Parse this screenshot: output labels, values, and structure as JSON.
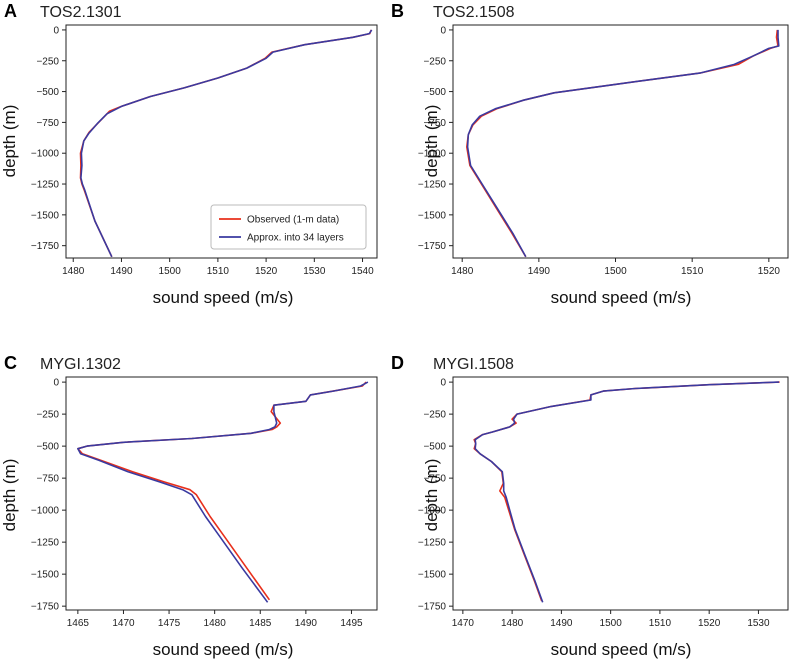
{
  "colors": {
    "observed": "#e8301c",
    "approx": "#3a3aa0"
  },
  "legend": {
    "observed": "Observed (1-m data)",
    "approx": "Approx. into 34 layers"
  },
  "chart_data": [
    {
      "type": "line",
      "letter": "A",
      "title": "TOS2.1301",
      "xlabel": "sound speed (m/s)",
      "ylabel": "depth (m)",
      "xlim": [
        1478.5,
        1543
      ],
      "ylim": [
        -1850,
        40
      ],
      "xticks": [
        1480,
        1490,
        1500,
        1510,
        1520,
        1530,
        1540
      ],
      "yticks": [
        0,
        -250,
        -500,
        -750,
        -1000,
        -1250,
        -1500,
        -1750
      ],
      "series": [
        {
          "name": "Observed (1-m data)",
          "x": [
            1541.8,
            1541.5,
            1538,
            1528,
            1521.2,
            1519.8,
            1516,
            1510,
            1503,
            1496,
            1490,
            1487.5,
            1485.5,
            1483.3,
            1482.2,
            1481.5,
            1481.6,
            1481.5,
            1481.8,
            1482.3,
            1484.5,
            1488
          ],
          "y": [
            0,
            -30,
            -60,
            -120,
            -180,
            -230,
            -310,
            -390,
            -470,
            -540,
            -620,
            -660,
            -740,
            -830,
            -900,
            -1000,
            -1100,
            -1200,
            -1250,
            -1300,
            -1550,
            -1840
          ]
        },
        {
          "name": "Approx. into 34 layers",
          "x": [
            1541.9,
            1541.4,
            1538,
            1528,
            1521.4,
            1520,
            1516,
            1510,
            1503,
            1496,
            1490,
            1487,
            1485,
            1483.2,
            1482.2,
            1481.7,
            1481.8,
            1481.6,
            1481.9,
            1482.4,
            1484.5,
            1488
          ],
          "y": [
            0,
            -30,
            -60,
            -120,
            -180,
            -230,
            -310,
            -390,
            -470,
            -540,
            -620,
            -680,
            -760,
            -840,
            -900,
            -1000,
            -1100,
            -1200,
            -1250,
            -1300,
            -1550,
            -1840
          ]
        }
      ]
    },
    {
      "type": "line",
      "letter": "B",
      "title": "TOS2.1508",
      "xlabel": "sound speed (m/s)",
      "ylabel": "depth (m)",
      "xlim": [
        1478.8,
        1522.5
      ],
      "ylim": [
        -1850,
        40
      ],
      "xticks": [
        1480,
        1490,
        1500,
        1510,
        1520
      ],
      "yticks": [
        0,
        -250,
        -500,
        -750,
        -1000,
        -1250,
        -1500,
        -1750
      ],
      "series": [
        {
          "name": "Observed (1-m data)",
          "x": [
            1521.1,
            1521,
            1521.2,
            1520.2,
            1518,
            1516,
            1511,
            1505,
            1499,
            1492,
            1488,
            1484.5,
            1482.5,
            1481.4,
            1480.8,
            1480.6,
            1481,
            1482.5,
            1484.5,
            1486.5,
            1488.3
          ],
          "y": [
            0,
            -60,
            -130,
            -150,
            -210,
            -280,
            -350,
            -400,
            -450,
            -510,
            -570,
            -640,
            -700,
            -770,
            -850,
            -950,
            -1100,
            -1250,
            -1450,
            -1650,
            -1840
          ]
        },
        {
          "name": "Approx. into 34 layers",
          "x": [
            1521.2,
            1521.2,
            1521.3,
            1520,
            1518,
            1515.5,
            1511,
            1505,
            1499,
            1492,
            1488,
            1484.3,
            1482.3,
            1481.3,
            1480.8,
            1480.7,
            1481.1,
            1482.6,
            1484.6,
            1486.6,
            1488.3
          ],
          "y": [
            0,
            -60,
            -130,
            -150,
            -210,
            -280,
            -350,
            -400,
            -450,
            -510,
            -570,
            -640,
            -700,
            -770,
            -850,
            -950,
            -1100,
            -1250,
            -1450,
            -1650,
            -1840
          ]
        }
      ]
    },
    {
      "type": "line",
      "letter": "C",
      "title": "MYGI.1302",
      "xlabel": "sound speed (m/s)",
      "ylabel": "depth (m)",
      "xlim": [
        1463.7,
        1497.8
      ],
      "ylim": [
        -1780,
        40
      ],
      "xticks": [
        1465,
        1470,
        1475,
        1480,
        1485,
        1490,
        1495
      ],
      "yticks": [
        0,
        -250,
        -500,
        -750,
        -1000,
        -1250,
        -1500,
        -1750
      ],
      "series": [
        {
          "name": "Observed (1-m data)",
          "x": [
            1496.6,
            1496.2,
            1493,
            1490.5,
            1490,
            1486.5,
            1486.2,
            1487.2,
            1486.8,
            1486.3,
            1484,
            1477.5,
            1470,
            1466,
            1465,
            1465.5,
            1467.5,
            1471,
            1474.5,
            1477.3,
            1478,
            1479.5,
            1481,
            1483.5,
            1486
          ],
          "y": [
            0,
            -30,
            -70,
            -100,
            -150,
            -180,
            -230,
            -320,
            -350,
            -370,
            -400,
            -440,
            -470,
            -500,
            -520,
            -560,
            -610,
            -700,
            -780,
            -840,
            -880,
            -1050,
            -1200,
            -1450,
            -1700
          ]
        },
        {
          "name": "Approx. into 34 layers",
          "x": [
            1496.8,
            1496,
            1493,
            1490.5,
            1490,
            1486.5,
            1486.5,
            1486.8,
            1486.6,
            1486,
            1484,
            1477.5,
            1470,
            1466,
            1465,
            1465.3,
            1467.3,
            1470.5,
            1474,
            1476.5,
            1477.5,
            1479,
            1480.5,
            1483,
            1485.8
          ],
          "y": [
            0,
            -30,
            -70,
            -100,
            -150,
            -180,
            -230,
            -320,
            -350,
            -370,
            -400,
            -440,
            -470,
            -500,
            -520,
            -560,
            -610,
            -700,
            -780,
            -840,
            -880,
            -1050,
            -1200,
            -1450,
            -1720
          ]
        }
      ]
    },
    {
      "type": "line",
      "letter": "D",
      "title": "MYGI.1508",
      "xlabel": "sound speed (m/s)",
      "ylabel": "depth (m)",
      "xlim": [
        1468,
        1536
      ],
      "ylim": [
        -1780,
        40
      ],
      "xticks": [
        1470,
        1480,
        1490,
        1500,
        1510,
        1520,
        1530
      ],
      "yticks": [
        0,
        -250,
        -500,
        -750,
        -1000,
        -1250,
        -1500,
        -1750
      ],
      "series": [
        {
          "name": "Observed (1-m data)",
          "x": [
            1534.3,
            1520,
            1507.5,
            1505,
            1498.5,
            1496,
            1495.8,
            1488,
            1481,
            1480,
            1480.8,
            1479.5,
            1476,
            1474,
            1472.3,
            1472.6,
            1472.3,
            1473.5,
            1475.8,
            1477.9,
            1478.2,
            1477.5,
            1478.5,
            1479.3,
            1480.5,
            1482.5,
            1484.5,
            1486
          ],
          "y": [
            0,
            -20,
            -45,
            -50,
            -70,
            -100,
            -140,
            -190,
            -250,
            -290,
            -320,
            -350,
            -390,
            -410,
            -450,
            -480,
            -520,
            -560,
            -620,
            -700,
            -790,
            -850,
            -900,
            -1000,
            -1150,
            -1350,
            -1550,
            -1710
          ]
        },
        {
          "name": "Approx. into 34 layers",
          "x": [
            1534.2,
            1520,
            1507.2,
            1505,
            1498.5,
            1496,
            1496,
            1488,
            1481,
            1480.3,
            1480.5,
            1479.5,
            1476,
            1474,
            1472.5,
            1472.6,
            1472.5,
            1473.5,
            1475.8,
            1478,
            1478.3,
            1478.3,
            1478.8,
            1479.5,
            1480.6,
            1482.6,
            1484.6,
            1486.2
          ],
          "y": [
            0,
            -20,
            -45,
            -50,
            -70,
            -100,
            -140,
            -190,
            -250,
            -290,
            -320,
            -350,
            -390,
            -410,
            -450,
            -480,
            -520,
            -560,
            -620,
            -700,
            -790,
            -850,
            -900,
            -1000,
            -1150,
            -1350,
            -1550,
            -1720
          ]
        }
      ]
    }
  ]
}
